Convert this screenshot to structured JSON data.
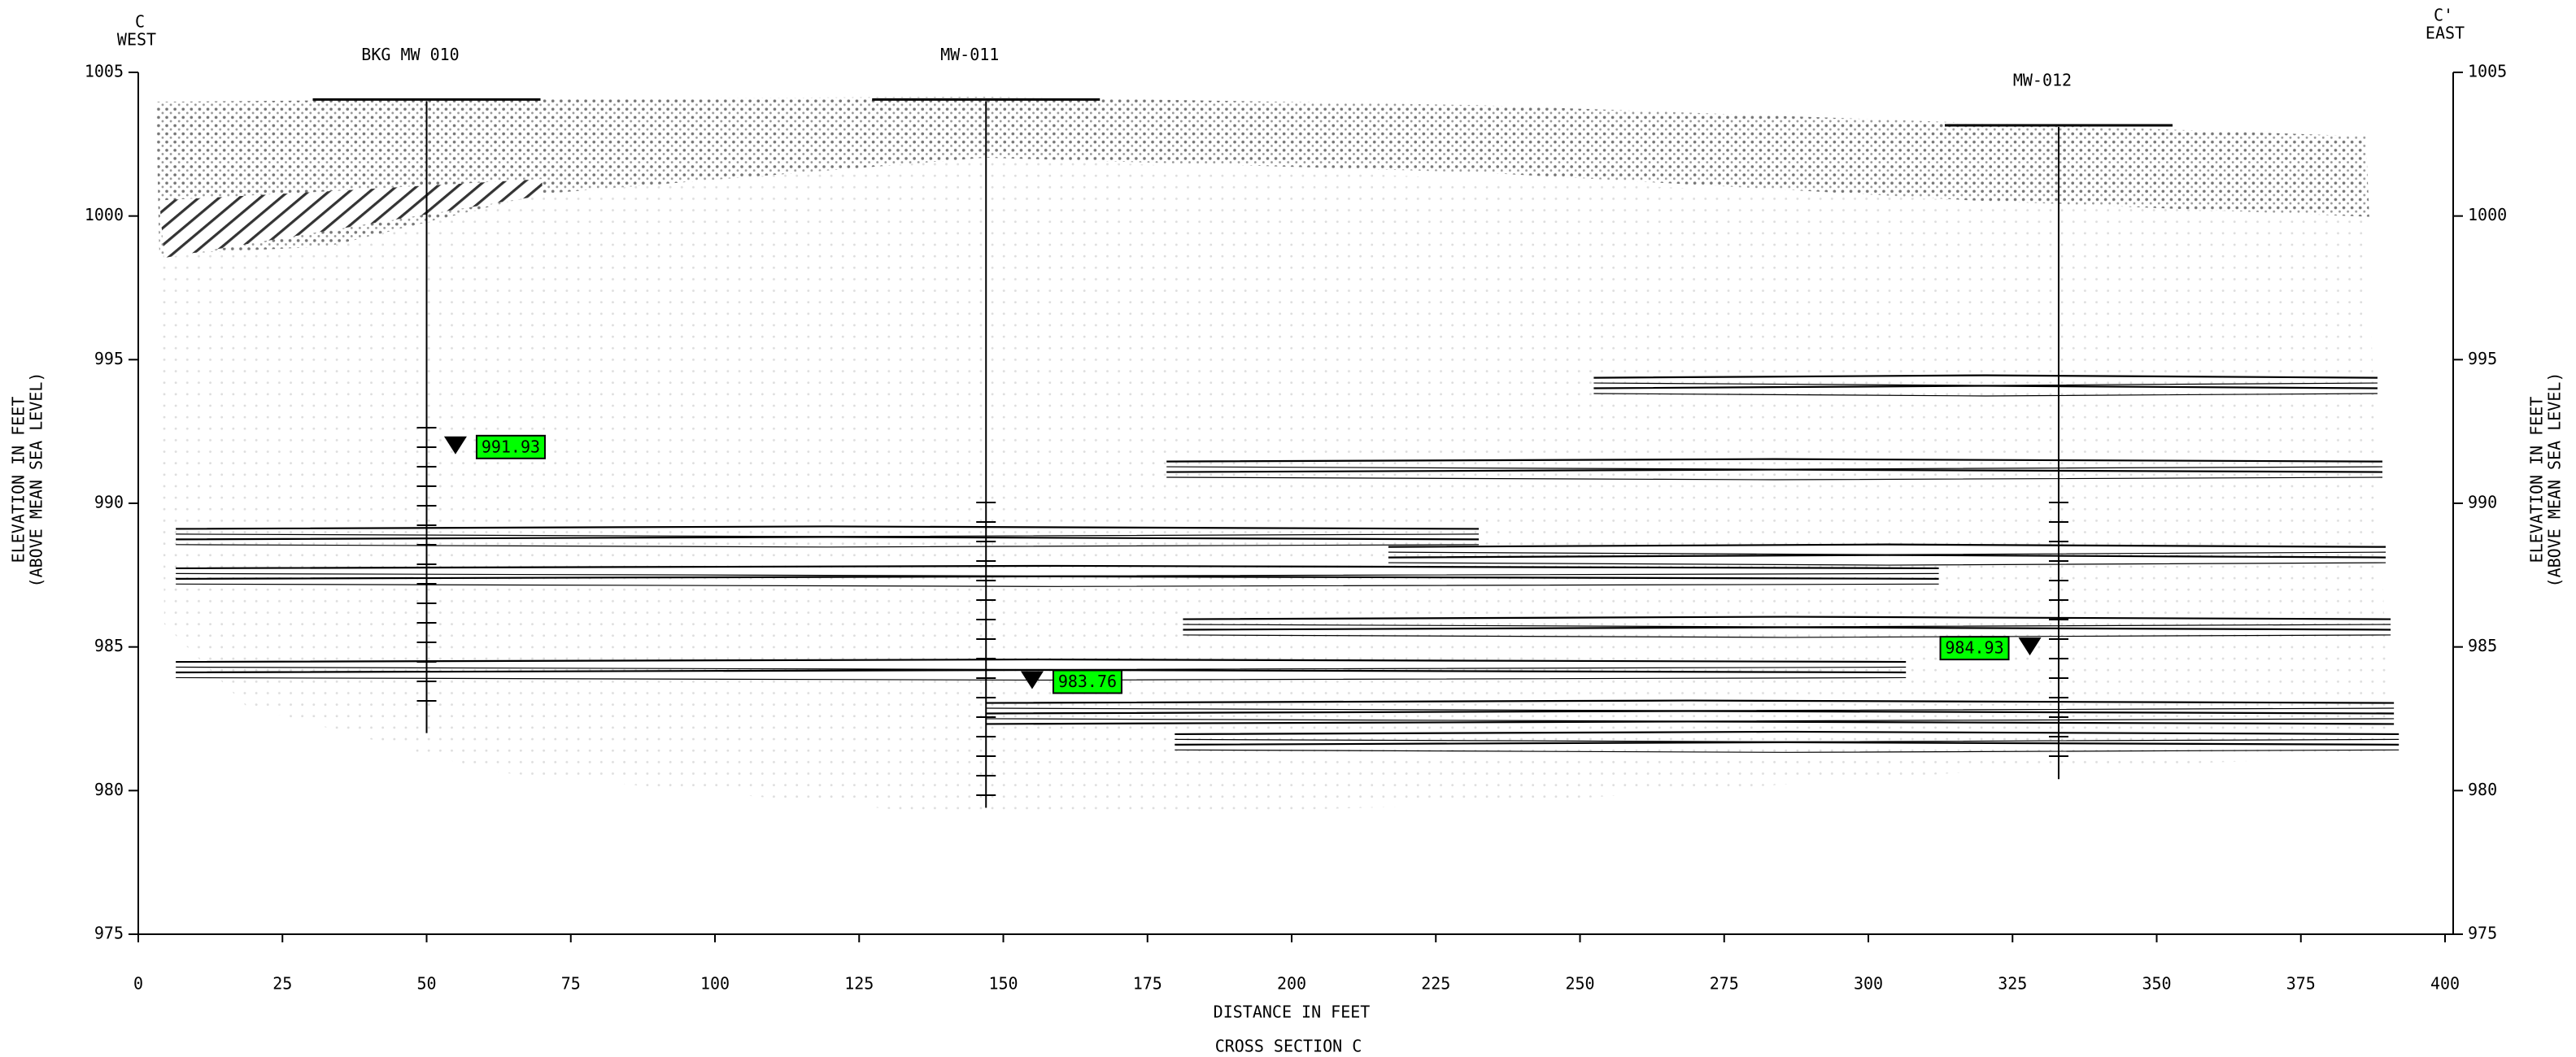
{
  "chart_data": {
    "type": "section",
    "title": "CROSS SECTION C",
    "x_label": "DISTANCE IN FEET",
    "y_label": [
      "ELEVATION IN FEET",
      "(ABOVE MEAN SEA LEVEL)"
    ],
    "corners": {
      "left": [
        "C",
        "WEST"
      ],
      "right": [
        "C'",
        "EAST"
      ]
    },
    "xlim": [
      0,
      400
    ],
    "xticks": [
      0,
      25,
      50,
      75,
      100,
      125,
      150,
      175,
      200,
      225,
      250,
      275,
      300,
      325,
      350,
      375,
      400
    ],
    "ylim": [
      975,
      1005
    ],
    "yticks": [
      975,
      980,
      985,
      990,
      995,
      1000,
      1005
    ],
    "wells": [
      {
        "name": "BKG MW 010",
        "x": 50,
        "top": 1004,
        "bottom": 982,
        "water_level": 991.93,
        "water_x": 55
      },
      {
        "name": "MW-011",
        "x": 147,
        "top": 1004,
        "bottom": 979.4,
        "water_level": 983.76,
        "water_x": 155
      },
      {
        "name": "MW-012",
        "x": 333,
        "top": 1003.1,
        "bottom": 980.4,
        "water_level": 984.93,
        "water_x": 328
      }
    ],
    "water_color": "#00ff00"
  }
}
